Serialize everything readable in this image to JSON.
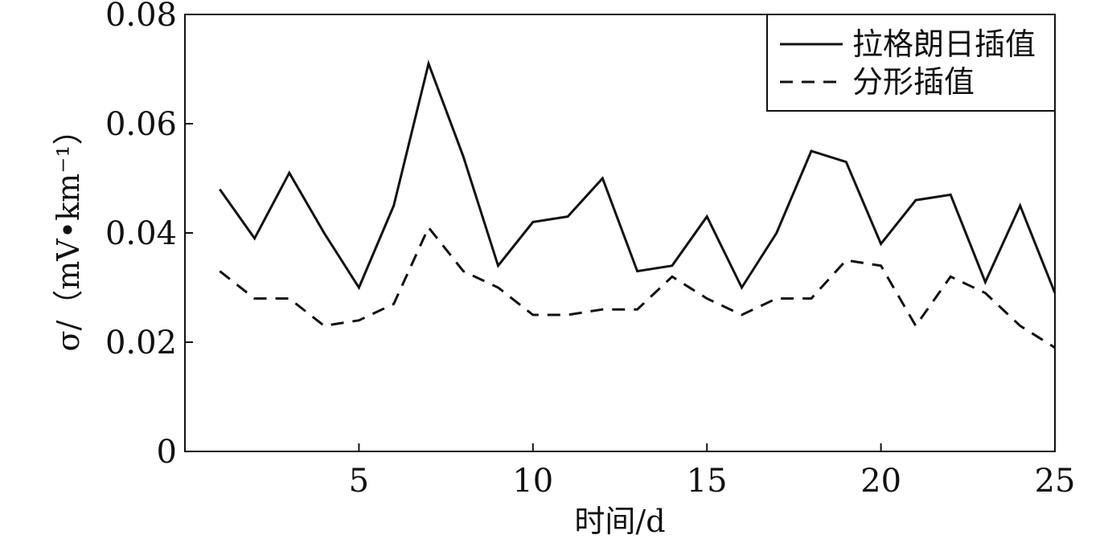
{
  "chart_data": {
    "type": "line",
    "title": "",
    "xlabel": "时间/d",
    "ylabel": "σ/（mV•km⁻¹）",
    "xlim": [
      0,
      25
    ],
    "ylim": [
      0,
      0.08
    ],
    "xticks": [
      5,
      10,
      15,
      20,
      25
    ],
    "xtick_labels": [
      "5",
      "10",
      "15",
      "20",
      "25"
    ],
    "yticks": [
      0,
      0.02,
      0.04,
      0.06,
      0.08
    ],
    "ytick_labels": [
      "0",
      "0.02",
      "0.04",
      "0.06",
      "0.08"
    ],
    "grid": false,
    "legend_position": "top-right",
    "x": [
      1,
      2,
      3,
      4,
      5,
      6,
      7,
      8,
      9,
      10,
      11,
      12,
      13,
      14,
      15,
      16,
      17,
      18,
      19,
      20,
      21,
      22,
      23,
      24,
      25
    ],
    "series": [
      {
        "name": "拉格朗日插值",
        "style": "solid",
        "color": "#111111",
        "values": [
          0.048,
          0.039,
          0.051,
          0.04,
          0.03,
          0.045,
          0.071,
          0.054,
          0.034,
          0.042,
          0.043,
          0.05,
          0.033,
          0.034,
          0.043,
          0.03,
          0.04,
          0.055,
          0.053,
          0.038,
          0.046,
          0.047,
          0.031,
          0.045,
          0.029
        ]
      },
      {
        "name": "分形插值",
        "style": "dashed",
        "color": "#111111",
        "values": [
          0.033,
          0.028,
          0.028,
          0.023,
          0.024,
          0.027,
          0.041,
          0.033,
          0.03,
          0.025,
          0.025,
          0.026,
          0.026,
          0.032,
          0.028,
          0.025,
          0.028,
          0.028,
          0.035,
          0.034,
          0.023,
          0.032,
          0.029,
          0.023,
          0.019
        ]
      }
    ]
  }
}
